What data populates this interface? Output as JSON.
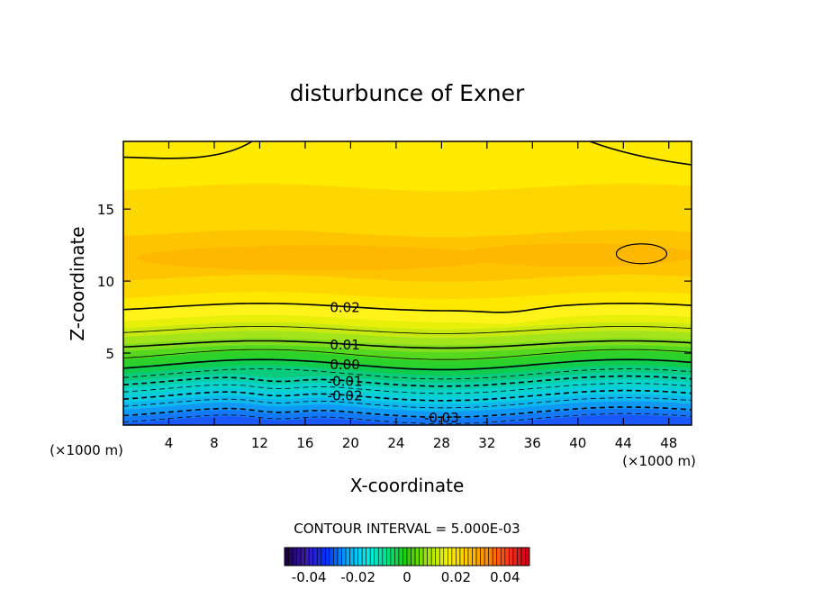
{
  "chart_data": {
    "type": "contour",
    "title": "disturbunce of Exner",
    "xlabel": "X-coordinate",
    "ylabel": "Z-coordinate",
    "x_unit": "(×1000 m)",
    "y_unit": "(×1000 m)",
    "xlim": [
      0,
      50
    ],
    "ylim": [
      0,
      19.7
    ],
    "x_ticks": [
      4,
      8,
      12,
      16,
      20,
      24,
      28,
      32,
      36,
      40,
      44,
      48
    ],
    "y_ticks": [
      5,
      10,
      15
    ],
    "contour_interval_text": "CONTOUR INTERVAL = 5.000E-03",
    "contour_interval": 0.005,
    "contours": [
      {
        "value": -0.035,
        "label": "",
        "dashed": true,
        "z": 0.45
      },
      {
        "value": -0.03,
        "label": "-0.03",
        "dashed": true,
        "z": 0.9
      },
      {
        "value": -0.025,
        "label": "",
        "dashed": true,
        "z": 1.55
      },
      {
        "value": -0.02,
        "label": "-0.02",
        "dashed": true,
        "z": 2.05
      },
      {
        "value": -0.015,
        "label": "",
        "dashed": true,
        "z": 2.55
      },
      {
        "value": -0.01,
        "label": "-0.01",
        "dashed": true,
        "z": 3.05
      },
      {
        "value": -0.005,
        "label": "",
        "dashed": true,
        "z": 3.55
      },
      {
        "value": 0.0,
        "label": "0.00",
        "dashed": false,
        "z": 4.2
      },
      {
        "value": 0.005,
        "label": "",
        "dashed": false,
        "z": 4.9
      },
      {
        "value": 0.01,
        "label": "0.01",
        "dashed": false,
        "z": 5.6
      },
      {
        "value": 0.015,
        "label": "",
        "dashed": false,
        "z": 6.6
      },
      {
        "value": 0.02,
        "label": "0.02",
        "dashed": false,
        "z": 8.2
      }
    ],
    "colorbar": {
      "ticks": [
        "-0.04",
        "-0.02",
        "0",
        "0.02",
        "0.04"
      ],
      "tick_values": [
        -0.04,
        -0.02,
        0,
        0.02,
        0.04
      ],
      "range": [
        -0.05,
        0.05
      ],
      "colors": [
        "#1c0050",
        "#3a1ab8",
        "#0032ff",
        "#00a8ff",
        "#00eeee",
        "#00e08a",
        "#22cc00",
        "#a0e800",
        "#f4f400",
        "#ffc800",
        "#ff8a00",
        "#ff3a1a",
        "#d1001a"
      ]
    },
    "field_colors": {
      "top": "#ffea00",
      "upper": "#ffd700",
      "core": "#ffb800",
      "core_edge": "#ffc400",
      "band_a": "#ffe800",
      "band_b": "#fff31a",
      "band_c": "#e8f00a",
      "band_d": "#c8ea10",
      "band_e": "#a4e41a",
      "band_f": "#80de1e",
      "band_g": "#56d81e",
      "band_h": "#2cd22a",
      "band_i": "#10cc4e",
      "band_j": "#08cc7c",
      "band_k": "#06d0a8",
      "band_l": "#06d4cc",
      "band_m": "#08cce0",
      "band_n": "#0cb8ee",
      "band_o": "#1098f6",
      "band_p": "#1478fa",
      "band_q": "#1a58fc"
    }
  }
}
